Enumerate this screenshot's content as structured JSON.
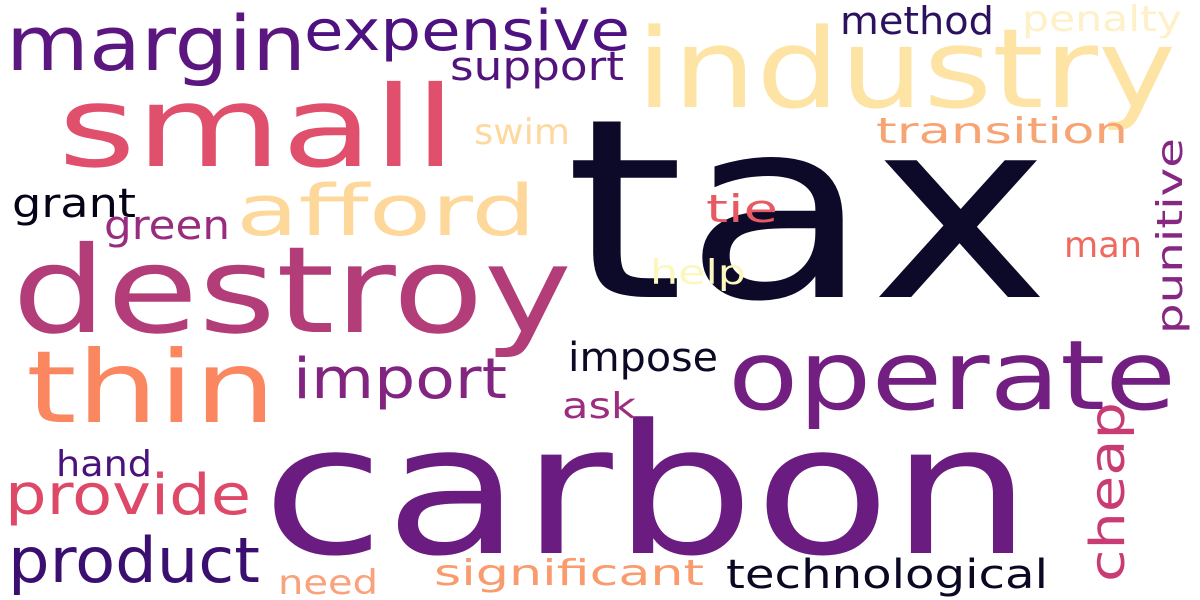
{
  "words": [
    {
      "text": "tax",
      "color": "#0d0a29"
    },
    {
      "text": "carbon",
      "color": "#6a1c81"
    },
    {
      "text": "destroy",
      "color": "#b33d79"
    },
    {
      "text": "industry",
      "color": "#fde4a5"
    },
    {
      "text": "small",
      "color": "#e0506d"
    },
    {
      "text": "operate",
      "color": "#721f81"
    },
    {
      "text": "thin",
      "color": "#fb8761"
    },
    {
      "text": "margin",
      "color": "#5c167f"
    },
    {
      "text": "afford",
      "color": "#fdd89a"
    },
    {
      "text": "expensive",
      "color": "#4d1180"
    },
    {
      "text": "product",
      "color": "#3b0f70"
    },
    {
      "text": "import",
      "color": "#822581"
    },
    {
      "text": "provide",
      "color": "#de4968"
    },
    {
      "text": "cheap",
      "color": "#c83c73"
    },
    {
      "text": "technological",
      "color": "#0a0822"
    },
    {
      "text": "significant",
      "color": "#f99b6c"
    },
    {
      "text": "transition",
      "color": "#f7a474"
    },
    {
      "text": "punitive",
      "color": "#862781"
    },
    {
      "text": "support",
      "color": "#53137d"
    },
    {
      "text": "penalty",
      "color": "#fef0c8"
    },
    {
      "text": "method",
      "color": "#2c115f"
    },
    {
      "text": "impose",
      "color": "#0b0924"
    },
    {
      "text": "grant",
      "color": "#050417"
    },
    {
      "text": "green",
      "color": "#982d80"
    },
    {
      "text": "swim",
      "color": "#fdd9a0"
    },
    {
      "text": "tie",
      "color": "#e85a61"
    },
    {
      "text": "help",
      "color": "#fcf7bf"
    },
    {
      "text": "man",
      "color": "#ee6a5e"
    },
    {
      "text": "ask",
      "color": "#9c2e7f"
    },
    {
      "text": "hand",
      "color": "#4b127b"
    },
    {
      "text": "need",
      "color": "#f9a27b"
    }
  ]
}
